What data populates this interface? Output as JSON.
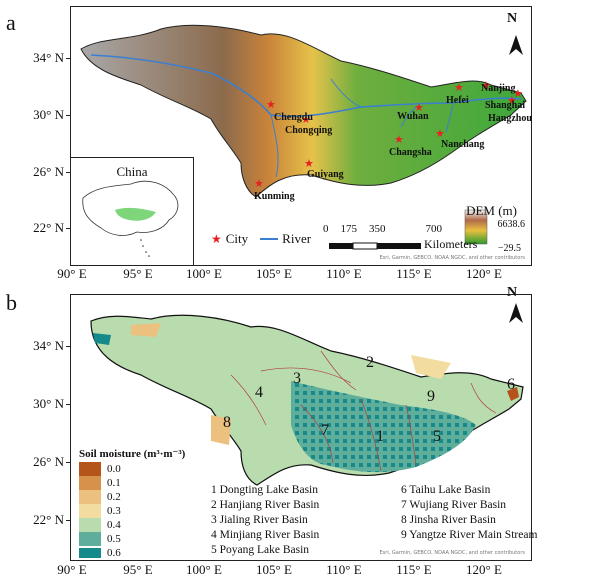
{
  "panels": {
    "a": {
      "letter": "a"
    },
    "b": {
      "letter": "b"
    }
  },
  "axes": {
    "lat_labels": [
      "34° N",
      "30° N",
      "26° N",
      "22° N"
    ],
    "lon_labels": [
      "90° E",
      "95° E",
      "100° E",
      "105° E",
      "110° E",
      "115° E",
      "120° E"
    ]
  },
  "map_a": {
    "cities": [
      "Chengdu",
      "Chongqing",
      "Guiyang",
      "Kunming",
      "Wuhan",
      "Changsha",
      "Nanchang",
      "Hefei",
      "Nanjing",
      "Shanghai",
      "Hangzhou"
    ],
    "inset_title": "China",
    "legend": {
      "city": "City",
      "river": "River"
    },
    "scale": {
      "ticks": [
        "0",
        "175",
        "350",
        "700"
      ],
      "unit": "Kilometers"
    },
    "dem": {
      "title": "DEM (m)",
      "max": "6638.6",
      "min": "−29.5"
    },
    "north": "N",
    "attribution": "Esri, Garmin, GEBCO, NOAA NGDC, and other contributors"
  },
  "map_b": {
    "north": "N",
    "basin_numbers": [
      "1",
      "2",
      "3",
      "4",
      "5",
      "6",
      "7",
      "8",
      "9"
    ],
    "legend_title": "Soil moisture (m³·m⁻³)",
    "legend_values": [
      "0.0",
      "0.1",
      "0.2",
      "0.3",
      "0.4",
      "0.5",
      "0.6"
    ],
    "legend_colors": [
      "#b4541a",
      "#d6924a",
      "#ecc07f",
      "#f2dca0",
      "#b9dcae",
      "#5fae9b",
      "#168a8a"
    ],
    "basins": [
      "1 Dongting Lake Basin",
      "6 Taihu Lake Basin",
      "2 Hanjiang River Basin",
      "7 Wujiang River Basin",
      "3 Jialing River Basin",
      "8 Jinsha River Basin",
      "4 Minjiang River Basin",
      "9 Yangtze River Main Stream",
      "5 Poyang Lake Basin",
      ""
    ],
    "attribution": "Esri, Garmin, GEBCO, NOAA NGDC, and other contributors"
  }
}
